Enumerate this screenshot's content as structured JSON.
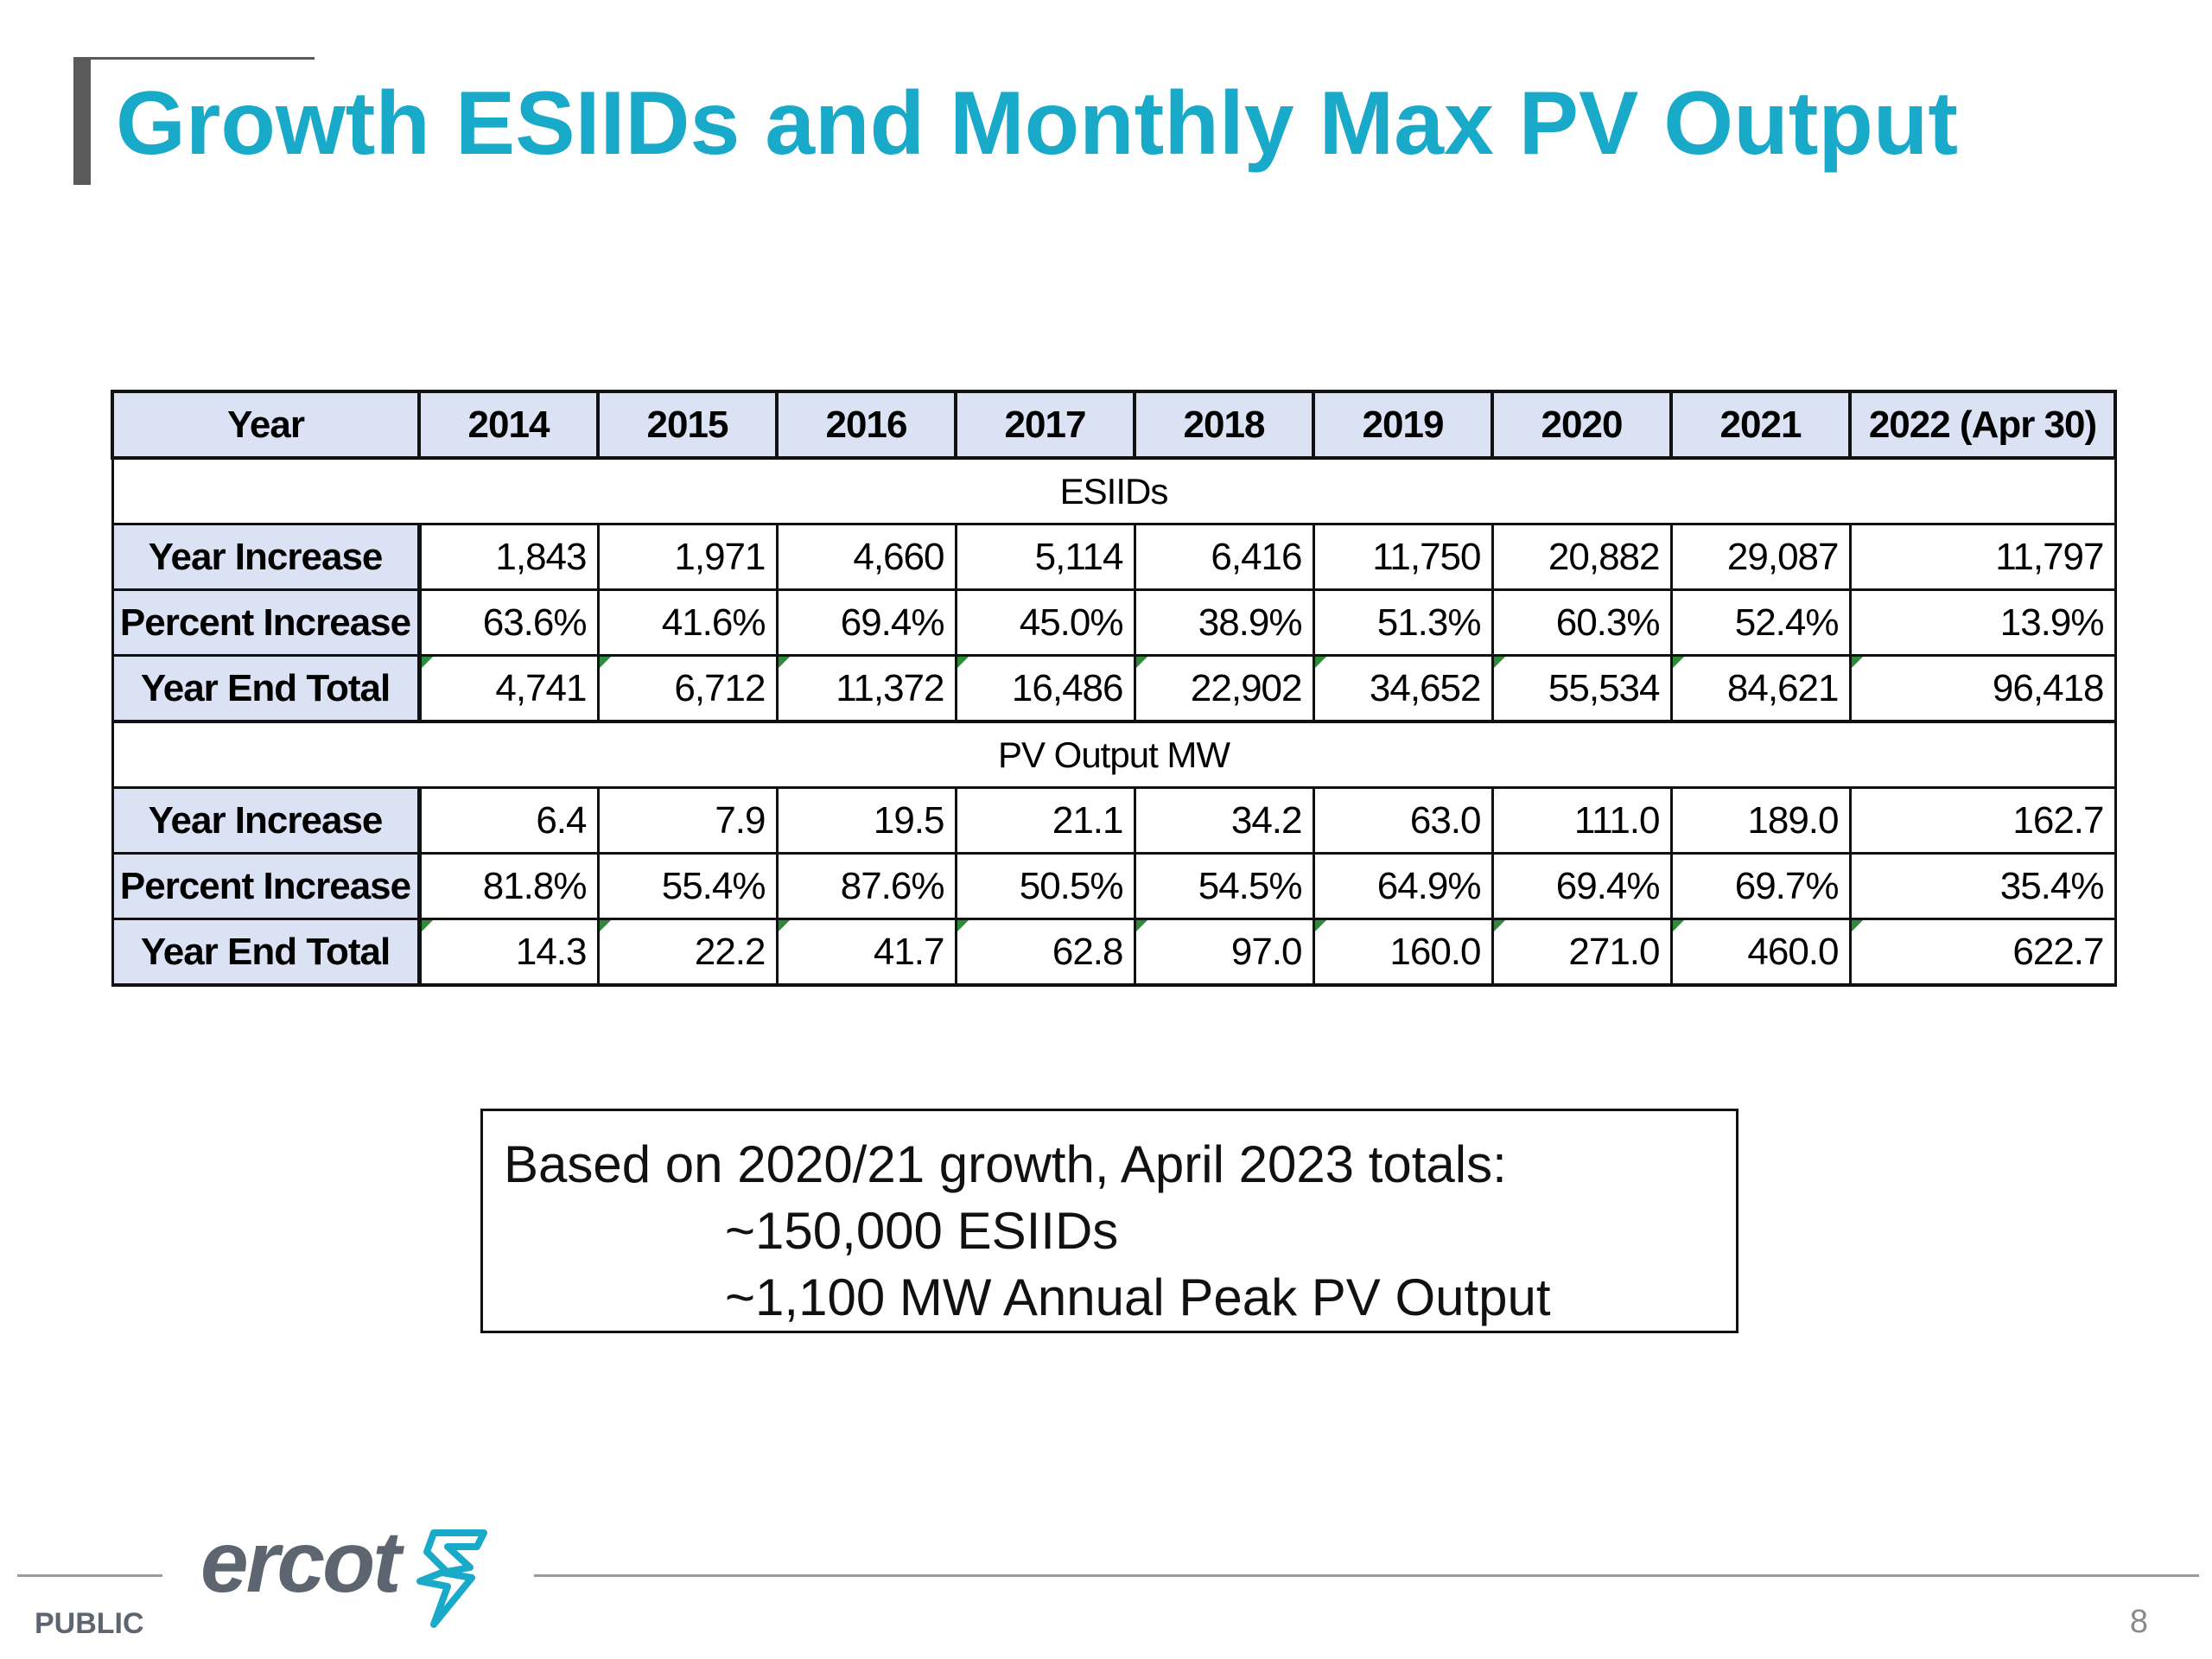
{
  "slide": {
    "title": "Growth ESIIDs and Monthly Max PV Output",
    "classification": "PUBLIC",
    "page_number": "8",
    "logo_text": "ercot",
    "accent_color": "#19a9c9"
  },
  "table": {
    "corner_header": "Year",
    "years": [
      "2014",
      "2015",
      "2016",
      "2017",
      "2018",
      "2019",
      "2020",
      "2021",
      "2022 (Apr 30)"
    ],
    "sections": [
      {
        "title": "ESIIDs",
        "rows": [
          {
            "label": "Year Increase",
            "values": [
              "1,843",
              "1,971",
              "4,660",
              "5,114",
              "6,416",
              "11,750",
              "20,882",
              "29,087",
              "11,797"
            ]
          },
          {
            "label": "Percent Increase",
            "values": [
              "63.6%",
              "41.6%",
              "69.4%",
              "45.0%",
              "38.9%",
              "51.3%",
              "60.3%",
              "52.4%",
              "13.9%"
            ]
          },
          {
            "label": "Year End Total",
            "values": [
              "4,741",
              "6,712",
              "11,372",
              "16,486",
              "22,902",
              "34,652",
              "55,534",
              "84,621",
              "96,418"
            ]
          }
        ]
      },
      {
        "title": "PV Output MW",
        "rows": [
          {
            "label": "Year Increase",
            "values": [
              "6.4",
              "7.9",
              "19.5",
              "21.1",
              "34.2",
              "63.0",
              "111.0",
              "189.0",
              "162.7"
            ]
          },
          {
            "label": "Percent Increase",
            "values": [
              "81.8%",
              "55.4%",
              "87.6%",
              "50.5%",
              "54.5%",
              "64.9%",
              "69.4%",
              "69.7%",
              "35.4%"
            ]
          },
          {
            "label": "Year End Total",
            "values": [
              "14.3",
              "22.2",
              "41.7",
              "62.8",
              "97.0",
              "160.0",
              "271.0",
              "460.0",
              "622.7"
            ]
          }
        ]
      }
    ]
  },
  "note": {
    "lines": [
      "Based on 2020/21 growth, April 2023 totals:",
      "~150,000 ESIIDs",
      "~1,100 MW Annual Peak PV Output"
    ]
  }
}
